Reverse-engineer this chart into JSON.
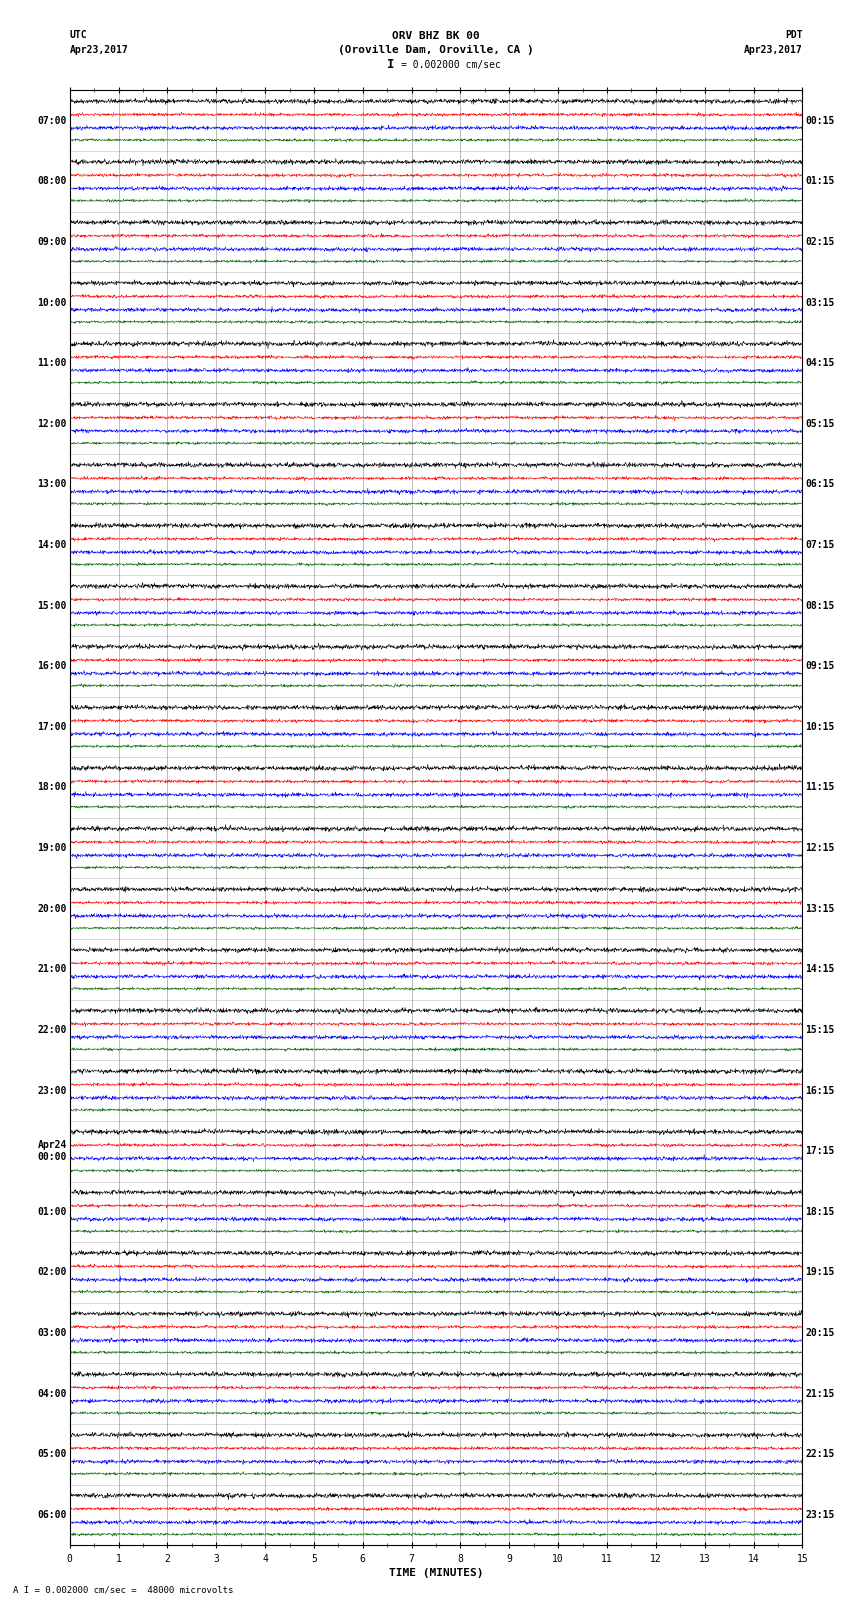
{
  "title_line1": "ORV BHZ BK 00",
  "title_line2": "(Oroville Dam, Oroville, CA )",
  "scale_label": "I = 0.002000 cm/sec",
  "bottom_label": "A I = 0.002000 cm/sec =  48000 microvolts",
  "xlabel": "TIME (MINUTES)",
  "left_header": "UTC",
  "left_date": "Apr23,2017",
  "right_header": "PDT",
  "right_date": "Apr23,2017",
  "background_color": "#ffffff",
  "trace_colors": [
    "black",
    "red",
    "blue",
    "darkgreen"
  ],
  "xmin": 0,
  "xmax": 15,
  "num_minutes": 15,
  "rows": [
    {
      "utc": "07:00",
      "pdt": "00:15"
    },
    {
      "utc": "08:00",
      "pdt": "01:15"
    },
    {
      "utc": "09:00",
      "pdt": "02:15"
    },
    {
      "utc": "10:00",
      "pdt": "03:15"
    },
    {
      "utc": "11:00",
      "pdt": "04:15"
    },
    {
      "utc": "12:00",
      "pdt": "05:15"
    },
    {
      "utc": "13:00",
      "pdt": "06:15"
    },
    {
      "utc": "14:00",
      "pdt": "07:15"
    },
    {
      "utc": "15:00",
      "pdt": "08:15"
    },
    {
      "utc": "16:00",
      "pdt": "09:15"
    },
    {
      "utc": "17:00",
      "pdt": "10:15"
    },
    {
      "utc": "18:00",
      "pdt": "11:15"
    },
    {
      "utc": "19:00",
      "pdt": "12:15"
    },
    {
      "utc": "20:00",
      "pdt": "13:15"
    },
    {
      "utc": "21:00",
      "pdt": "14:15"
    },
    {
      "utc": "22:00",
      "pdt": "15:15"
    },
    {
      "utc": "23:00",
      "pdt": "16:15"
    },
    {
      "utc": "Apr24\n00:00",
      "pdt": "17:15"
    },
    {
      "utc": "01:00",
      "pdt": "18:15"
    },
    {
      "utc": "02:00",
      "pdt": "19:15"
    },
    {
      "utc": "03:00",
      "pdt": "20:15"
    },
    {
      "utc": "04:00",
      "pdt": "21:15"
    },
    {
      "utc": "05:00",
      "pdt": "22:15"
    },
    {
      "utc": "06:00",
      "pdt": "23:15"
    }
  ],
  "num_rows": 24,
  "traces_per_row": 4,
  "noise_amplitude": [
    0.018,
    0.012,
    0.015,
    0.01
  ],
  "noise_seed": 42,
  "title_fontsize": 8,
  "label_fontsize": 7,
  "tick_fontsize": 7,
  "grid_color": "#888888",
  "vgrid_color": "#888888",
  "linewidth": 0.4
}
